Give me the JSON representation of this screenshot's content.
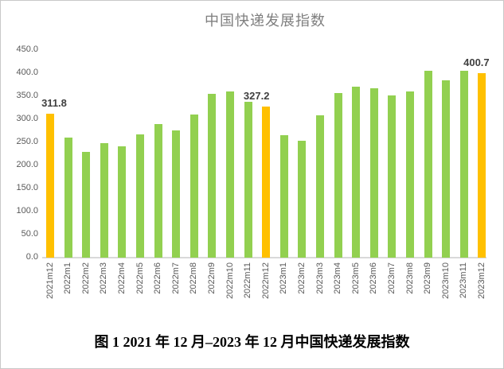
{
  "figure": {
    "caption": "图 1 2021 年 12 月–2023 年 12 月中国快递发展指数"
  },
  "chart_data": {
    "type": "bar",
    "title": "中国快递发展指数",
    "categories": [
      "2021m12",
      "2022m1",
      "2022m2",
      "2022m3",
      "2022m4",
      "2022m5",
      "2022m6",
      "2022m7",
      "2022m8",
      "2022m9",
      "2022m10",
      "2022m11",
      "2022m12",
      "2023m1",
      "2023m2",
      "2023m3",
      "2023m4",
      "2023m5",
      "2023m6",
      "2023m7",
      "2023m8",
      "2023m9",
      "2023m10",
      "2023m11",
      "2023m12"
    ],
    "values": [
      311.8,
      260,
      229,
      249,
      242,
      268,
      289,
      276,
      310,
      355,
      360,
      338,
      327.2,
      265,
      254,
      308,
      357,
      370,
      368,
      352,
      360,
      406,
      384,
      406,
      400.7
    ],
    "highlighted_categories": [
      "2021m12",
      "2022m12",
      "2023m12"
    ],
    "annotations": [
      {
        "category": "2021m12",
        "label": "311.8"
      },
      {
        "category": "2022m12",
        "label": "327.2"
      },
      {
        "category": "2023m12",
        "label": "400.7"
      }
    ],
    "y_ticks": [
      0,
      50,
      100,
      150,
      200,
      250,
      300,
      350,
      400,
      450
    ],
    "ylim": [
      0,
      450
    ],
    "grid": false,
    "legend": false,
    "colors": {
      "bar_default": "#92D050",
      "bar_highlight": "#FFC000",
      "axis_text": "#595959",
      "value_label_text": "#3F3F3F",
      "title_text": "#7F7F7F",
      "axis_line": "#D9D9D9",
      "caption_text": "#000000",
      "border": "#C9C9C9",
      "background": "#FFFFFF"
    }
  }
}
